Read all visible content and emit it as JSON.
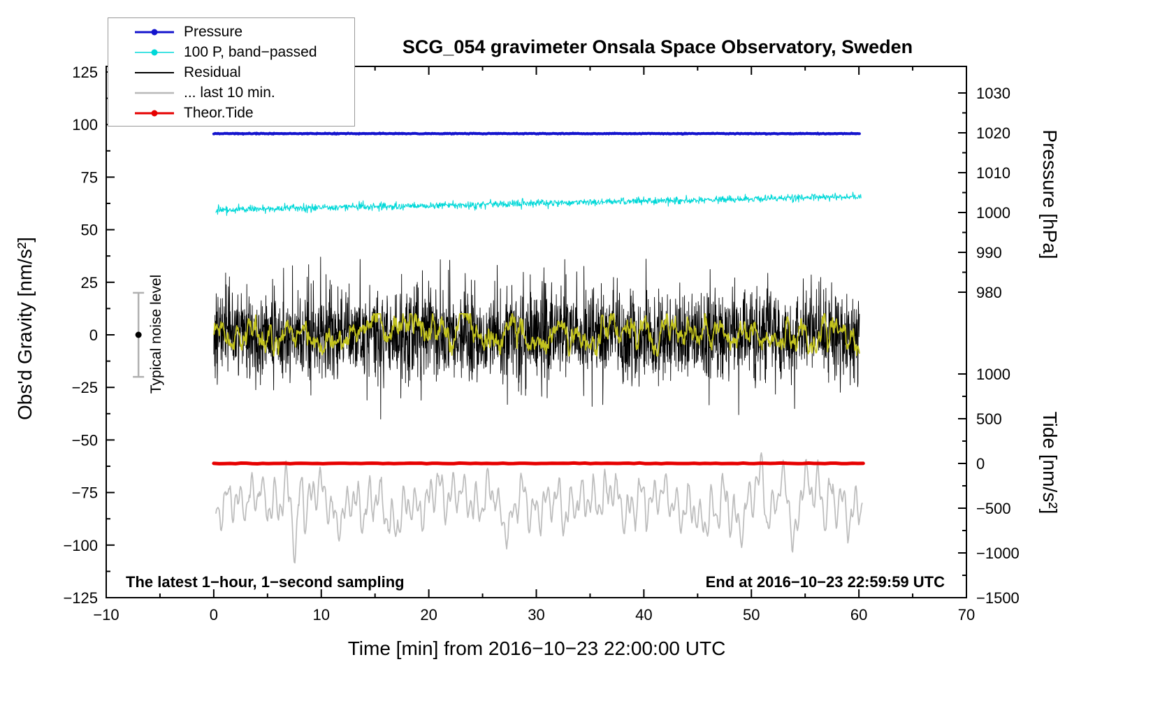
{
  "annotations": {
    "noise_label": "Typical noise level",
    "sampling_note": "The latest 1−hour, 1−second sampling",
    "end_note": "End at 2016−10−23 22:59:59 UTC"
  },
  "legend": [
    {
      "label": "Pressure",
      "color": "#1414cd",
      "marker": true,
      "lw": 3
    },
    {
      "label": "100 P, band−passed",
      "color": "#00d8d8",
      "marker": true,
      "lw": 1.5
    },
    {
      "label": "Residual",
      "color": "#000000",
      "marker": false,
      "lw": 2
    },
    {
      "label": "... last 10 min.",
      "color": "#b8b8b8",
      "marker": false,
      "lw": 2.5
    },
    {
      "label": "Theor.Tide",
      "color": "#e60000",
      "marker": true,
      "lw": 3
    }
  ],
  "chart_data": {
    "type": "line",
    "title": "SCG_054 gravimeter Onsala Space Observatory, Sweden",
    "axes": {
      "x": {
        "label": "Time [min] from 2016−10−23 22:00:00 UTC",
        "min": -10,
        "max": 70,
        "major_ticks": [
          -10,
          0,
          10,
          20,
          30,
          40,
          50,
          60,
          70
        ],
        "minor_step": 5
      },
      "gravity": {
        "label": "Obs'd Gravity [nm/s²]",
        "min": -125,
        "max": 125,
        "side": "left",
        "major_ticks": [
          125,
          100,
          75,
          50,
          25,
          0,
          -25,
          -50,
          -75,
          -100,
          -125
        ],
        "minor_step": 12.5
      },
      "pressure": {
        "label": "Pressure [hPa]",
        "side": "right",
        "major_ticks": [
          1030,
          1020,
          1010,
          1000,
          990,
          980
        ],
        "minor_step": 5
      },
      "tide": {
        "label": "Tide [nm/s²]",
        "side": "right",
        "major_ticks": [
          1000,
          500,
          0,
          -500,
          -1000,
          -1500
        ],
        "minor_step": 250
      }
    },
    "noise_bar": {
      "t": -7,
      "value": 0,
      "half_range": 20,
      "color": "#b0b0b0"
    },
    "seed": 20161023,
    "series": [
      {
        "id": "last10min",
        "name": "... last 10 min.",
        "axis": "tide",
        "color": "#bcbcbc",
        "width": 1.7,
        "summary": "Gray band-passed residual of last 10 min, mean ≈ −430 nm/s², swings ≈ ±350, spikes to −1250 near t≈7.6 and t≈54, peaks ≈ +500 near t≈8 and t≈51",
        "gen": {
          "t0": 0.2,
          "t1": 60.3,
          "n": 950,
          "baseline": -430,
          "sd": 35,
          "ar": 0.92,
          "sines": [
            {
              "amp": 150,
              "period": 1.1,
              "phase": 0.7
            },
            {
              "amp": 120,
              "period": 0.52,
              "phase": 2.1
            },
            {
              "amp": 80,
              "period": 2.7,
              "phase": 4.0
            }
          ],
          "events": [
            {
              "t": 7.6,
              "amp": -620,
              "w": 0.28
            },
            {
              "t": 8.15,
              "amp": 430,
              "w": 0.18
            },
            {
              "t": 53.9,
              "amp": -520,
              "w": 0.35
            },
            {
              "t": 51.1,
              "amp": 380,
              "w": 0.25
            }
          ],
          "clamp": [
            -1270,
            520
          ]
        }
      },
      {
        "id": "theor_tide",
        "name": "Theor.Tide",
        "axis": "tide",
        "color": "#e60000",
        "width": 5,
        "summary": "Theoretical tide ≈ 0 nm/s² (flat red line) over the whole hour",
        "gen": {
          "t0": 0,
          "t1": 60.4,
          "n": 120,
          "baseline": 0,
          "sd": 2
        }
      },
      {
        "id": "bandpassed",
        "name": "100 P, band−passed",
        "axis": "gravity",
        "color": "#00d8d8",
        "width": 1.1,
        "summary": "100× band-passed pressure: rises slowly from ≈59 to ≈66 on the gravity scale with ≈±2 jitter",
        "gen": {
          "t0": 0.2,
          "t1": 60.2,
          "n": 1500,
          "baseline": 59.4,
          "slope": 0.105,
          "sd": 0.85
        }
      },
      {
        "id": "pressure",
        "name": "Pressure",
        "axis": "pressure",
        "color": "#1414cd",
        "width": 4,
        "summary": "Barometric pressure nearly constant ≈ 1019.8 hPa",
        "gen": {
          "t0": 0,
          "t1": 60.05,
          "n": 900,
          "baseline": 1019.8,
          "sd": 0.05
        }
      },
      {
        "id": "residual",
        "name": "Residual",
        "axis": "gravity",
        "color": "#000000",
        "width": 0.9,
        "summary": "1-second gravity residual: zero-mean noise, typical ±15 nm/s², extremes ≈ ±40 nm/s²",
        "gen": {
          "t0": 0,
          "t1": 60.05,
          "n": 2600,
          "baseline": 0,
          "sd": 11,
          "burst_prob": 0.006,
          "burst_mult": 2.2,
          "clamp": [
            -44,
            44
          ]
        }
      },
      {
        "id": "residual_smooth",
        "name": "Residual (smoothed, olive)",
        "axis": "gravity",
        "color": "#c3c31e",
        "width": 1.8,
        "summary": "Smoothed residual riding on the raw residual, ≈ ±5 nm/s² around zero",
        "gen": {
          "t0": 0,
          "t1": 60.05,
          "n": 1400,
          "baseline": 0,
          "sd": 2.2,
          "ar": 0.88,
          "clamp": [
            -10,
            10
          ]
        }
      }
    ]
  }
}
